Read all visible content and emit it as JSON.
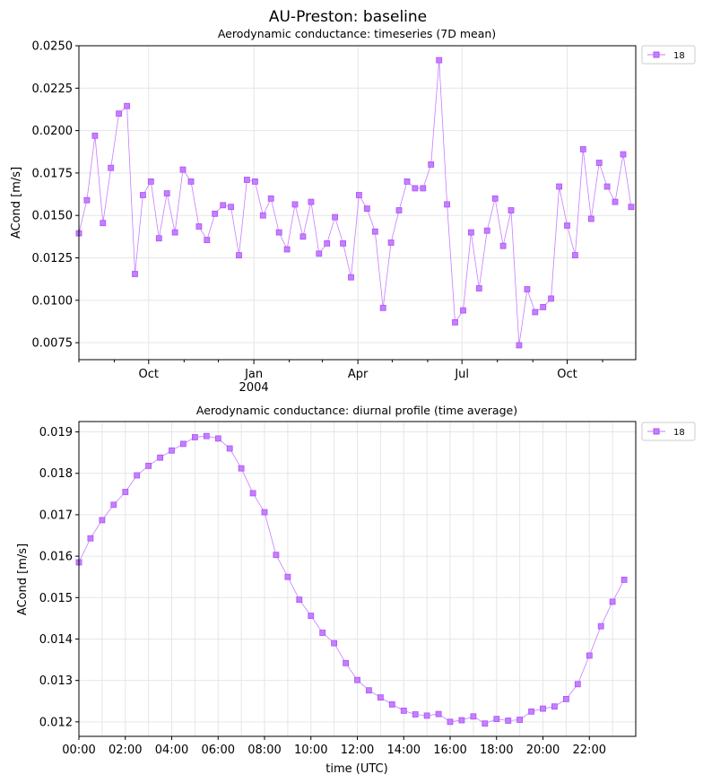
{
  "figure": {
    "title": "AU-Preston: baseline"
  },
  "colors": {
    "series": "#c77dff",
    "marker_edge": "#a855f7",
    "grid": "#e6e6e6",
    "axis": "#000000"
  },
  "chart_data": [
    {
      "type": "line",
      "title": "Aerodynamic conductance: timeseries (7D mean)",
      "ylabel": "ACond [m/s]",
      "xlabel": "",
      "xlim": [
        "2003-08-01",
        "2004-11-30"
      ],
      "ylim": [
        0.0065,
        0.025
      ],
      "yticks": [
        "0.0075",
        "0.0100",
        "0.0125",
        "0.0150",
        "0.0175",
        "0.0200",
        "0.0225",
        "0.0250"
      ],
      "xticks": [
        {
          "date": "2003-10-01",
          "label": "Oct",
          "sub": ""
        },
        {
          "date": "2004-01-01",
          "label": "Jan",
          "sub": "2004"
        },
        {
          "date": "2004-04-01",
          "label": "Apr",
          "sub": ""
        },
        {
          "date": "2004-07-01",
          "label": "Jul",
          "sub": ""
        },
        {
          "date": "2004-10-01",
          "label": "Oct",
          "sub": ""
        }
      ],
      "xminor_ticks": [
        "2003-08-01",
        "2003-09-01",
        "2003-11-01",
        "2003-12-01",
        "2004-02-01",
        "2004-03-01",
        "2004-05-01",
        "2004-06-01",
        "2004-08-01",
        "2004-09-01",
        "2004-11-01"
      ],
      "grid": true,
      "legend": "outside top-right",
      "series": [
        {
          "name": "18",
          "x": [
            "2003-08-01",
            "2003-08-08",
            "2003-08-15",
            "2003-08-22",
            "2003-08-29",
            "2003-09-05",
            "2003-09-12",
            "2003-09-19",
            "2003-09-26",
            "2003-10-03",
            "2003-10-10",
            "2003-10-17",
            "2003-10-24",
            "2003-10-31",
            "2003-11-07",
            "2003-11-14",
            "2003-11-21",
            "2003-11-28",
            "2003-12-05",
            "2003-12-12",
            "2003-12-19",
            "2003-12-26",
            "2004-01-02",
            "2004-01-09",
            "2004-01-16",
            "2004-01-23",
            "2004-01-30",
            "2004-02-06",
            "2004-02-13",
            "2004-02-20",
            "2004-02-27",
            "2004-03-05",
            "2004-03-12",
            "2004-03-19",
            "2004-03-26",
            "2004-04-02",
            "2004-04-09",
            "2004-04-16",
            "2004-04-23",
            "2004-04-30",
            "2004-05-07",
            "2004-05-14",
            "2004-05-21",
            "2004-05-28",
            "2004-06-04",
            "2004-06-11",
            "2004-06-18",
            "2004-06-25",
            "2004-07-02",
            "2004-07-09",
            "2004-07-16",
            "2004-07-23",
            "2004-07-30",
            "2004-08-06",
            "2004-08-13",
            "2004-08-20",
            "2004-08-27",
            "2004-09-03",
            "2004-09-10",
            "2004-09-17",
            "2004-09-24",
            "2004-10-01",
            "2004-10-08",
            "2004-10-15",
            "2004-10-22",
            "2004-10-29",
            "2004-11-05",
            "2004-11-12",
            "2004-11-19",
            "2004-11-26"
          ],
          "values": [
            0.01395,
            0.0159,
            0.0197,
            0.01455,
            0.0178,
            0.021,
            0.02145,
            0.01155,
            0.0162,
            0.017,
            0.01365,
            0.0163,
            0.014,
            0.0177,
            0.017,
            0.01435,
            0.01355,
            0.0151,
            0.0156,
            0.0155,
            0.01265,
            0.0171,
            0.017,
            0.015,
            0.016,
            0.014,
            0.013,
            0.01565,
            0.01375,
            0.0158,
            0.01275,
            0.01335,
            0.0149,
            0.01335,
            0.01135,
            0.0162,
            0.0154,
            0.01405,
            0.00955,
            0.0134,
            0.0153,
            0.017,
            0.0166,
            0.0166,
            0.018,
            0.02415,
            0.01565,
            0.0087,
            0.0094,
            0.014,
            0.0107,
            0.0141,
            0.016,
            0.0132,
            0.0153,
            0.00735,
            0.01065,
            0.0093,
            0.0096,
            0.0101,
            0.0167,
            0.0144,
            0.01265,
            0.0189,
            0.0148,
            0.0181,
            0.0167,
            0.0158,
            0.0186,
            0.0155
          ]
        }
      ]
    },
    {
      "type": "line",
      "title": "Aerodynamic conductance: diurnal profile (time average)",
      "ylabel": "ACond [m/s]",
      "xlabel": "time (UTC)",
      "xlim": [
        0,
        24
      ],
      "ylim": [
        0.01165,
        0.01925
      ],
      "yticks": [
        "0.012",
        "0.013",
        "0.014",
        "0.015",
        "0.016",
        "0.017",
        "0.018",
        "0.019"
      ],
      "xticks": [
        "00:00",
        "02:00",
        "04:00",
        "06:00",
        "08:00",
        "10:00",
        "12:00",
        "14:00",
        "16:00",
        "18:00",
        "20:00",
        "22:00"
      ],
      "grid": true,
      "legend": "outside top-right",
      "series": [
        {
          "name": "18",
          "x": [
            0,
            0.5,
            1,
            1.5,
            2,
            2.5,
            3,
            3.5,
            4,
            4.5,
            5,
            5.5,
            6,
            6.5,
            7,
            7.5,
            8,
            8.5,
            9,
            9.5,
            10,
            10.5,
            11,
            11.5,
            12,
            12.5,
            13,
            13.5,
            14,
            14.5,
            15,
            15.5,
            16,
            16.5,
            17,
            17.5,
            18,
            18.5,
            19,
            19.5,
            20,
            20.5,
            21,
            21.5,
            22,
            22.5,
            23,
            23.5
          ],
          "values": [
            0.01585,
            0.01643,
            0.01687,
            0.01724,
            0.01755,
            0.01795,
            0.01818,
            0.01838,
            0.01855,
            0.01871,
            0.01887,
            0.0189,
            0.01884,
            0.0186,
            0.01812,
            0.01752,
            0.01706,
            0.01603,
            0.0155,
            0.01495,
            0.01456,
            0.01415,
            0.0139,
            0.01342,
            0.01301,
            0.01276,
            0.01259,
            0.01242,
            0.01227,
            0.01218,
            0.01215,
            0.01219,
            0.012,
            0.01204,
            0.01213,
            0.01196,
            0.01207,
            0.01203,
            0.01205,
            0.01225,
            0.01232,
            0.01237,
            0.01255,
            0.01291,
            0.0136,
            0.01431,
            0.0149,
            0.01543
          ]
        }
      ]
    }
  ]
}
